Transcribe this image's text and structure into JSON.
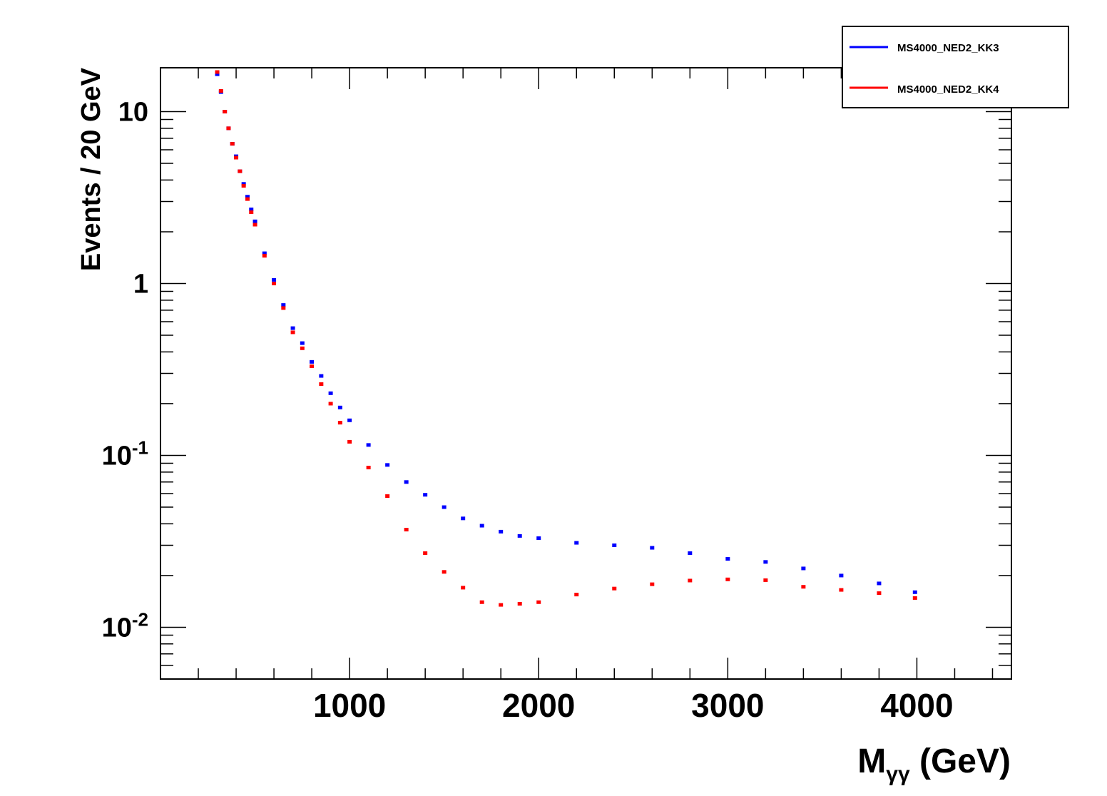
{
  "chart_data": {
    "type": "scatter",
    "title": "",
    "xlabel": "M",
    "xlabel_subscript": "γγ",
    "xlabel_unit": " (GeV)",
    "ylabel": "Events / 20 GeV",
    "xlim": [
      0,
      4500
    ],
    "ylim": [
      0.005,
      18
    ],
    "y_scale": "log",
    "grid": false,
    "legend_position": "top-right",
    "x_ticks": [
      1000,
      2000,
      3000,
      4000
    ],
    "x_tick_labels": [
      "1000",
      "2000",
      "3000",
      "4000"
    ],
    "y_ticks": [
      {
        "value": 0.01,
        "base": "10",
        "exp": "-2"
      },
      {
        "value": 0.1,
        "base": "10",
        "exp": "-1"
      },
      {
        "value": 1,
        "base": "1",
        "exp": ""
      },
      {
        "value": 10,
        "base": "10",
        "exp": ""
      }
    ],
    "series": [
      {
        "name": "MS4000_NED2_KK3",
        "color": "#0000ff",
        "points": [
          [
            300,
            16.5
          ],
          [
            320,
            13.0
          ],
          [
            340,
            10.0
          ],
          [
            360,
            8.0
          ],
          [
            380,
            6.5
          ],
          [
            400,
            5.5
          ],
          [
            420,
            4.5
          ],
          [
            440,
            3.8
          ],
          [
            460,
            3.2
          ],
          [
            480,
            2.7
          ],
          [
            500,
            2.3
          ],
          [
            550,
            1.5
          ],
          [
            600,
            1.05
          ],
          [
            650,
            0.75
          ],
          [
            700,
            0.55
          ],
          [
            750,
            0.45
          ],
          [
            800,
            0.35
          ],
          [
            850,
            0.29
          ],
          [
            900,
            0.23
          ],
          [
            950,
            0.19
          ],
          [
            1000,
            0.16
          ],
          [
            1100,
            0.115
          ],
          [
            1200,
            0.088
          ],
          [
            1300,
            0.07
          ],
          [
            1400,
            0.059
          ],
          [
            1500,
            0.05
          ],
          [
            1600,
            0.043
          ],
          [
            1700,
            0.039
          ],
          [
            1800,
            0.036
          ],
          [
            1900,
            0.034
          ],
          [
            2000,
            0.033
          ],
          [
            2200,
            0.031
          ],
          [
            2400,
            0.03
          ],
          [
            2600,
            0.029
          ],
          [
            2800,
            0.027
          ],
          [
            3000,
            0.025
          ],
          [
            3200,
            0.024
          ],
          [
            3400,
            0.022
          ],
          [
            3600,
            0.02
          ],
          [
            3800,
            0.018
          ],
          [
            3990,
            0.016
          ]
        ]
      },
      {
        "name": "MS4000_NED2_KK4",
        "color": "#ff0000",
        "points": [
          [
            300,
            17.0
          ],
          [
            320,
            13.2
          ],
          [
            340,
            10.0
          ],
          [
            360,
            8.0
          ],
          [
            380,
            6.5
          ],
          [
            400,
            5.4
          ],
          [
            420,
            4.5
          ],
          [
            440,
            3.7
          ],
          [
            460,
            3.1
          ],
          [
            480,
            2.6
          ],
          [
            500,
            2.2
          ],
          [
            550,
            1.45
          ],
          [
            600,
            1.0
          ],
          [
            650,
            0.72
          ],
          [
            700,
            0.52
          ],
          [
            750,
            0.42
          ],
          [
            800,
            0.33
          ],
          [
            850,
            0.26
          ],
          [
            900,
            0.2
          ],
          [
            950,
            0.155
          ],
          [
            1000,
            0.12
          ],
          [
            1100,
            0.085
          ],
          [
            1200,
            0.058
          ],
          [
            1300,
            0.037
          ],
          [
            1400,
            0.027
          ],
          [
            1500,
            0.021
          ],
          [
            1600,
            0.017
          ],
          [
            1700,
            0.014
          ],
          [
            1800,
            0.0135
          ],
          [
            1900,
            0.0137
          ],
          [
            2000,
            0.014
          ],
          [
            2200,
            0.0155
          ],
          [
            2400,
            0.0168
          ],
          [
            2600,
            0.0178
          ],
          [
            2800,
            0.0187
          ],
          [
            3000,
            0.019
          ],
          [
            3200,
            0.0188
          ],
          [
            3400,
            0.0172
          ],
          [
            3600,
            0.0165
          ],
          [
            3800,
            0.0158
          ],
          [
            3990,
            0.0148
          ]
        ]
      }
    ]
  }
}
